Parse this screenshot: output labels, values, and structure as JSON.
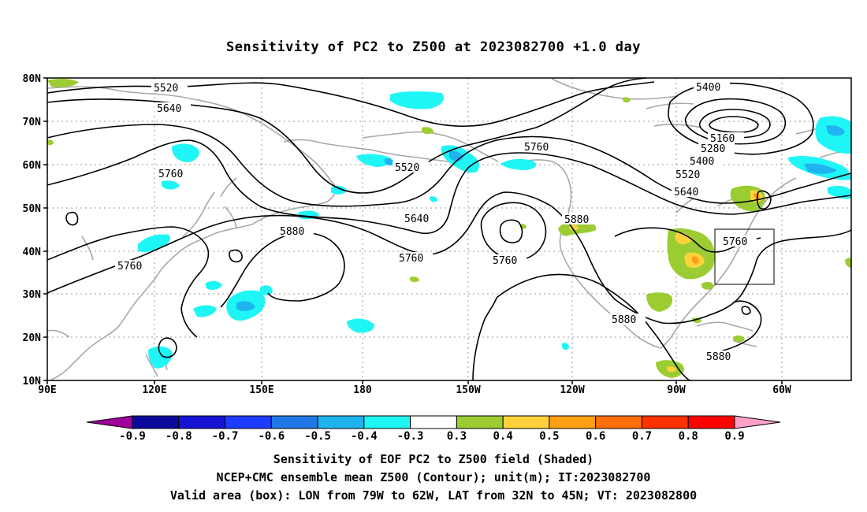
{
  "title": "Sensitivity of PC2 to Z500 at 2023082700 +1.0 day",
  "lat_labels": [
    "80N",
    "70N",
    "60N",
    "50N",
    "40N",
    "30N",
    "20N",
    "10N"
  ],
  "lon_labels": [
    "90E",
    "120E",
    "150E",
    "180",
    "150W",
    "120W",
    "90W",
    "60W"
  ],
  "contour_labels": {
    "c5520a": "5520",
    "c5640a": "5640",
    "c5760a": "5760",
    "c5760b": "5760",
    "c5880a": "5880",
    "c5520b": "5520",
    "c5640b": "5640",
    "c5760c": "5760",
    "c5760d": "5760",
    "c5760e": "5760",
    "c5880b": "5880",
    "c5400a": "5400",
    "c5160": "5160",
    "c5280": "5280",
    "c5400b": "5400",
    "c5520c": "5520",
    "c5640c": "5640",
    "c5760f": "5760",
    "c5880c": "5880",
    "c5880d": "5880"
  },
  "colorbar": {
    "labels": [
      "-0.9",
      "-0.8",
      "-0.7",
      "-0.6",
      "-0.5",
      "-0.4",
      "-0.3",
      "0.3",
      "0.4",
      "0.5",
      "0.6",
      "0.7",
      "0.8",
      "0.9"
    ],
    "colors": [
      "#a0009b",
      "#0a0a9b",
      "#1414d2",
      "#1e3cff",
      "#1f78e6",
      "#1fb4f0",
      "#1ff5f5",
      "#ffffff",
      "#9bcd32",
      "#ffd23c",
      "#ffa014",
      "#ff6e0a",
      "#ff3200",
      "#ff0000",
      "#ffa0c8"
    ]
  },
  "captions": {
    "line1": "Sensitivity of EOF PC2 to Z500 field (Shaded)",
    "line2": "NCEP+CMC ensemble mean Z500 (Contour); unit(m); IT:2023082700",
    "line3": "Valid area (box): LON from 79W to 62W, LAT from 32N to 45N; VT: 2023082800"
  }
}
